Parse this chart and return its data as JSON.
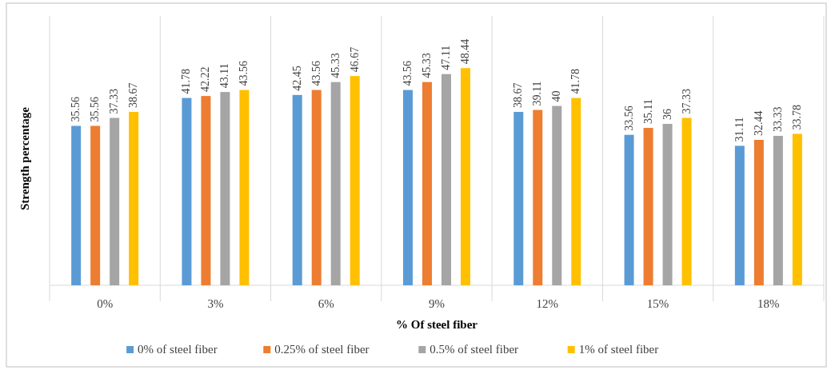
{
  "chart_data": {
    "type": "bar",
    "xlabel": "% Of steel fiber",
    "ylabel": "Strength percentage",
    "categories": [
      "0%",
      "3%",
      "6%",
      "9%",
      "12%",
      "15%",
      "18%"
    ],
    "series": [
      {
        "name": "0% of steel fiber",
        "color": "#5b9bd5",
        "values": [
          35.56,
          41.78,
          42.45,
          43.56,
          38.67,
          33.56,
          31.11
        ]
      },
      {
        "name": "0.25% of steel fiber",
        "color": "#ed7d31",
        "values": [
          35.56,
          42.22,
          43.56,
          45.33,
          39.11,
          35.11,
          32.44
        ]
      },
      {
        "name": "0.5% of steel fiber",
        "color": "#a5a5a5",
        "values": [
          37.33,
          43.11,
          45.33,
          47.11,
          40,
          36,
          33.33
        ]
      },
      {
        "name": "1% of steel fiber",
        "color": "#ffc000",
        "values": [
          38.67,
          43.56,
          46.67,
          48.44,
          41.78,
          37.33,
          33.78
        ]
      }
    ],
    "data_labels": true,
    "grid": "x",
    "legend": "bottom"
  }
}
